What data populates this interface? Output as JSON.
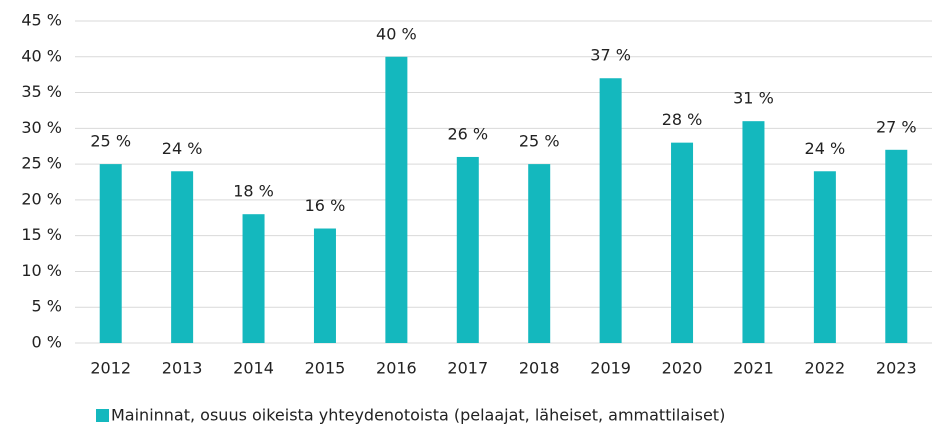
{
  "chart_data": {
    "type": "bar",
    "categories": [
      "2012",
      "2013",
      "2014",
      "2015",
      "2016",
      "2017",
      "2018",
      "2019",
      "2020",
      "2021",
      "2022",
      "2023"
    ],
    "series": [
      {
        "name": "Maininnat, osuus oikeista yhteydenotoista (pelaajat, läheiset, ammattilaiset)",
        "color": "#14b8be",
        "values": [
          25,
          24,
          18,
          16,
          40,
          26,
          25,
          37,
          28,
          31,
          24,
          27
        ],
        "value_labels": [
          "25 %",
          "24 %",
          "18 %",
          "16 %",
          "40 %",
          "26 %",
          "25 %",
          "37 %",
          "28 %",
          "31 %",
          "24 %",
          "27 %"
        ]
      }
    ],
    "ylim": [
      0,
      45
    ],
    "yticks": [
      {
        "value": 0,
        "label": "0 %"
      },
      {
        "value": 5,
        "label": "5 %"
      },
      {
        "value": 10,
        "label": "10 %"
      },
      {
        "value": 15,
        "label": "15 %"
      },
      {
        "value": 20,
        "label": "20 %"
      },
      {
        "value": 25,
        "label": "25 %"
      },
      {
        "value": 30,
        "label": "30 %"
      },
      {
        "value": 35,
        "label": "35 %"
      },
      {
        "value": 40,
        "label": "40 %"
      },
      {
        "value": 45,
        "label": "45 %"
      }
    ],
    "grid": true,
    "legend": "bottom"
  }
}
